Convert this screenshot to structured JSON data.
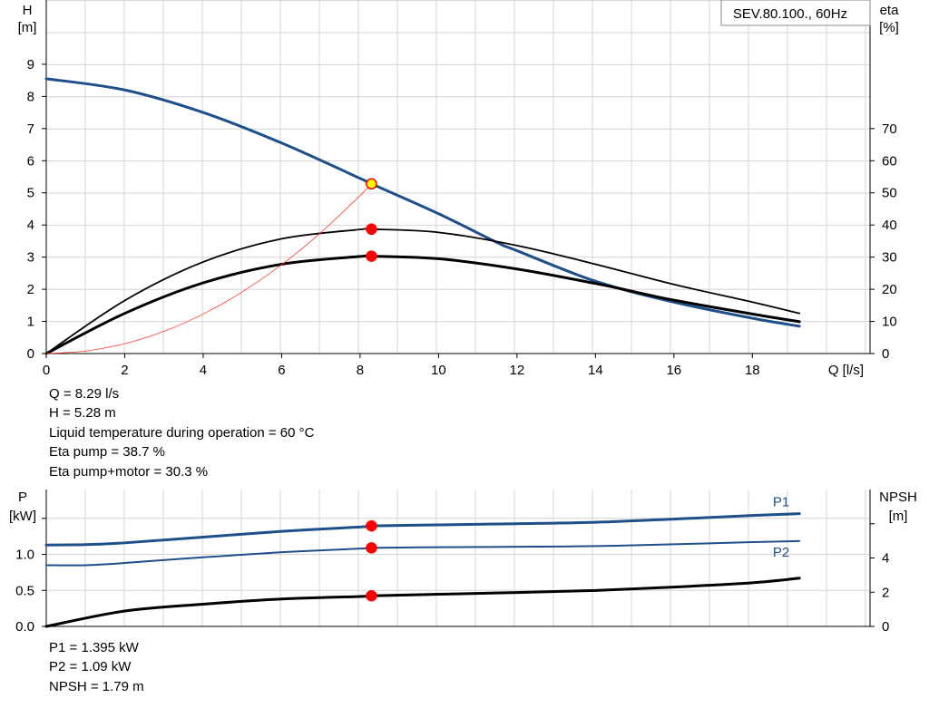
{
  "chart_data": [
    {
      "type": "line",
      "title": "SEV.80.100., 60Hz",
      "xlabel": "Q [l/s]",
      "ylabel_left": [
        "H",
        "[m]"
      ],
      "ylabel_right": [
        "eta",
        "[%]"
      ],
      "xlim": [
        0,
        21
      ],
      "ylim_left": [
        0,
        11
      ],
      "ylim_right": [
        0,
        110
      ],
      "xticks": [
        0,
        2,
        4,
        6,
        8,
        10,
        12,
        14,
        16,
        18
      ],
      "yticks_left": [
        0,
        1,
        2,
        3,
        4,
        5,
        6,
        7,
        8,
        9
      ],
      "yticks_right": [
        0,
        10,
        20,
        30,
        40,
        50,
        60,
        70
      ],
      "grid": true,
      "series": [
        {
          "axis": "left",
          "color": "#1f4f8b",
          "width": 3,
          "x": [
            0,
            2,
            4,
            6,
            8,
            8.29,
            10,
            11.5,
            12,
            14,
            16,
            18,
            19.2
          ],
          "y": [
            8.55,
            8.2,
            7.5,
            6.55,
            5.45,
            5.28,
            4.35,
            3.45,
            3.2,
            2.25,
            1.6,
            1.1,
            0.85
          ]
        },
        {
          "axis": "right",
          "color": "#000000",
          "width": 1.8,
          "x": [
            0,
            2,
            4,
            6,
            8,
            8.29,
            10,
            12,
            14,
            16,
            18,
            19.2
          ],
          "y": [
            0,
            16.5,
            28.5,
            35.7,
            38.6,
            38.7,
            37.7,
            33.6,
            27.8,
            21.5,
            16,
            12.5
          ]
        },
        {
          "axis": "right",
          "color": "#000000",
          "width": 3,
          "x": [
            0,
            2,
            4,
            6,
            8,
            8.29,
            10,
            12,
            14,
            15,
            16,
            18,
            19.2
          ],
          "y": [
            0,
            12.5,
            22,
            27.8,
            30.2,
            30.3,
            29.5,
            26.3,
            21.8,
            19.2,
            16.6,
            12.3,
            9.9
          ]
        },
        {
          "axis": "left",
          "color": "#ff3b30",
          "width": 0.8,
          "x": [
            0,
            1,
            2,
            3,
            4,
            5,
            6,
            7,
            8,
            8.29
          ],
          "y": [
            0,
            0.077,
            0.307,
            0.691,
            1.229,
            1.92,
            2.765,
            3.764,
            4.916,
            5.28
          ]
        }
      ],
      "points": [
        {
          "axis": "left",
          "x": 8.29,
          "y": 5.28,
          "fill": "#ffff00",
          "stroke": "#ff0000"
        },
        {
          "axis": "right",
          "x": 8.29,
          "y": 38.7,
          "fill": "#ff0000",
          "stroke": "#ff0000"
        },
        {
          "axis": "right",
          "x": 8.29,
          "y": 30.3,
          "fill": "#ff0000",
          "stroke": "#ff0000"
        }
      ]
    },
    {
      "type": "line",
      "xlim": [
        0,
        21
      ],
      "ylabel_left": [
        "P",
        "[kW]"
      ],
      "ylabel_right": [
        "NPSH",
        "[m]"
      ],
      "ylim_left": [
        0,
        1.9
      ],
      "ylim_right": [
        0,
        8
      ],
      "yticks_left": [
        "0.0",
        "0.5",
        "1.0",
        ""
      ],
      "yticks_left_values": [
        0,
        0.5,
        1.0,
        1.5
      ],
      "yticks_right": [
        "0",
        "2",
        "4",
        ""
      ],
      "yticks_right_values": [
        0,
        2,
        4,
        6
      ],
      "grid": true,
      "series": [
        {
          "name": "P1",
          "axis": "left",
          "color": "#1f4f8b",
          "width": 3,
          "x": [
            0,
            1,
            2,
            4,
            6,
            8,
            8.29,
            10,
            12,
            14,
            16,
            18,
            19.2
          ],
          "y": [
            1.13,
            1.135,
            1.16,
            1.24,
            1.32,
            1.38,
            1.395,
            1.41,
            1.425,
            1.445,
            1.49,
            1.54,
            1.565
          ]
        },
        {
          "name": "P2",
          "axis": "left",
          "color": "#1f4f8b",
          "width": 2,
          "x": [
            0,
            1,
            2,
            4,
            6,
            8,
            8.29,
            10,
            12,
            14,
            16,
            18,
            19.2
          ],
          "y": [
            0.85,
            0.85,
            0.88,
            0.96,
            1.03,
            1.08,
            1.09,
            1.1,
            1.105,
            1.115,
            1.14,
            1.17,
            1.185
          ]
        },
        {
          "name": "NPSH",
          "axis": "right",
          "color": "#000000",
          "width": 3,
          "x": [
            0,
            2,
            4,
            6,
            8,
            8.29,
            10,
            12,
            14,
            16,
            18,
            19.2
          ],
          "y": [
            0,
            0.9,
            1.3,
            1.6,
            1.75,
            1.79,
            1.88,
            1.98,
            2.1,
            2.3,
            2.55,
            2.82
          ]
        }
      ],
      "points": [
        {
          "axis": "left",
          "x": 8.29,
          "y": 1.395,
          "fill": "#ff0000",
          "stroke": "#ff0000"
        },
        {
          "axis": "left",
          "x": 8.29,
          "y": 1.09,
          "fill": "#ff0000",
          "stroke": "#ff0000"
        },
        {
          "axis": "right",
          "x": 8.29,
          "y": 1.79,
          "fill": "#ff0000",
          "stroke": "#ff0000"
        }
      ],
      "series_labels": [
        {
          "text": "P1",
          "color": "#1f4f8b"
        },
        {
          "text": "P2",
          "color": "#1f4f8b"
        }
      ]
    }
  ],
  "readout_top": [
    "Q = 8.29 l/s",
    "H = 5.28 m",
    "Liquid temperature during operation = 60 °C",
    "Eta pump = 38.7 %",
    "Eta pump+motor = 30.3 %"
  ],
  "readout_bottom": [
    "P1 = 1.395 kW",
    "P2 = 1.09 kW",
    "NPSH = 1.79 m"
  ]
}
